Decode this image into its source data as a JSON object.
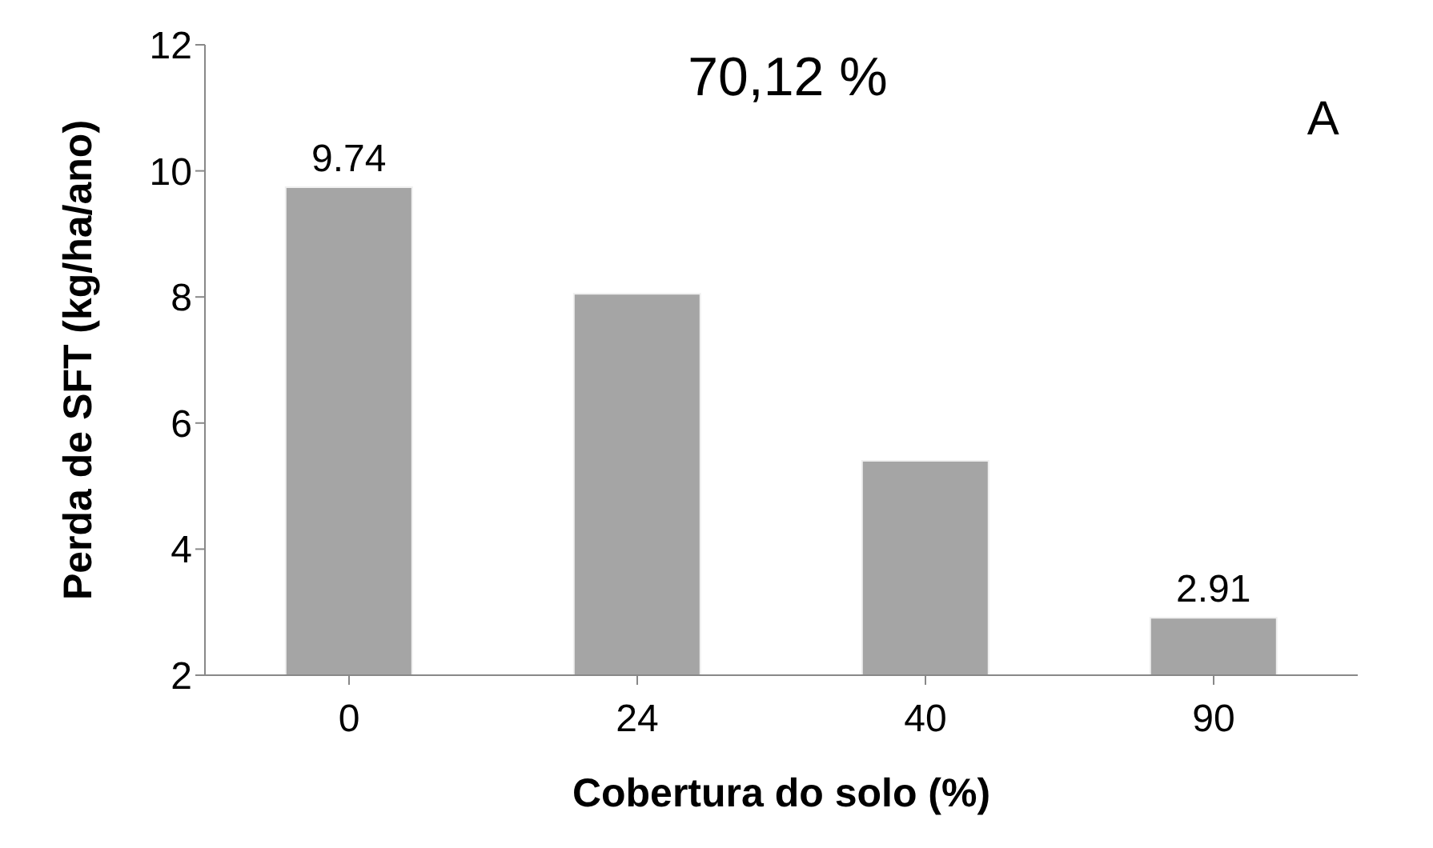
{
  "chart_data": {
    "type": "bar",
    "xlabel": "Cobertura do solo (%)",
    "ylabel": "Perda de SFT (kg/ha/ano)",
    "categories": [
      "0",
      "24",
      "40",
      "90"
    ],
    "values": [
      9.74,
      8.05,
      5.4,
      2.91
    ],
    "value_labels": [
      "9.74",
      null,
      null,
      "2.91"
    ],
    "color": "#a5a5a5",
    "ylim": [
      2,
      12
    ],
    "yticks": [
      2,
      4,
      6,
      8,
      10,
      12
    ],
    "annotations": [
      "70,12 %",
      "A"
    ],
    "grid": false,
    "legend": false
  }
}
